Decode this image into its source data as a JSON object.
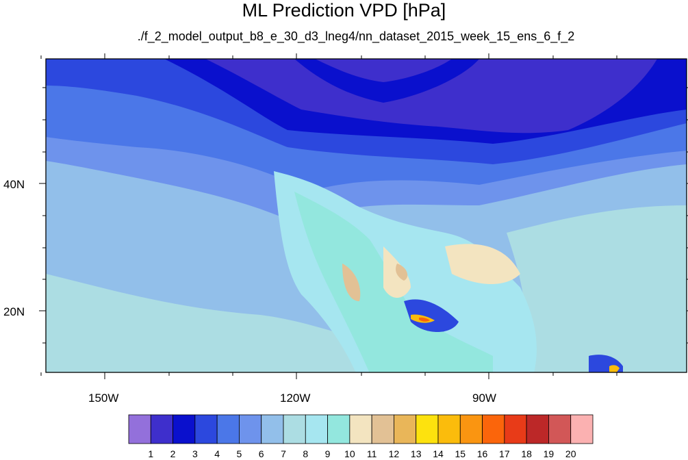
{
  "header": {
    "title": "ML Prediction VPD [hPa]",
    "subtitle": "./f_2_model_output_b8_e_30_d3_lneg4/nn_dataset_2015_week_15_ens_6_f_2"
  },
  "axes": {
    "x_labels": [
      "150W",
      "120W",
      "90W"
    ],
    "y_labels": [
      "40N",
      "20N"
    ]
  },
  "colorbar": {
    "labels": [
      "1",
      "2",
      "3",
      "4",
      "5",
      "6",
      "7",
      "8",
      "9",
      "10",
      "11",
      "12",
      "13",
      "14",
      "15",
      "16",
      "17",
      "18",
      "19",
      "20"
    ],
    "colors": [
      "#9370db",
      "#3e2fcc",
      "#0a10cd",
      "#2c48de",
      "#4b77e8",
      "#6e93ec",
      "#92bfea",
      "#acdde3",
      "#a6e6f0",
      "#93e7de",
      "#f3e4c0",
      "#e2c195",
      "#e9b659",
      "#fde20e",
      "#fbbc0c",
      "#fa9511",
      "#fb650b",
      "#e83b18",
      "#bc2828",
      "#d25757",
      "#fbb1b1"
    ]
  }
}
